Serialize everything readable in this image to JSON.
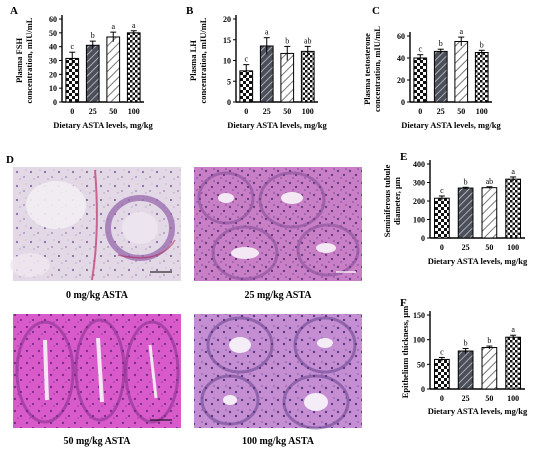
{
  "charts": [
    {
      "letter": "A",
      "ylabel_lines": [
        "Plasma FSH",
        "concentration, mIU/mL"
      ],
      "xlabel": "Dietary ASTA levels, mg/kg",
      "categories": [
        "0",
        "25",
        "50",
        "100"
      ],
      "ylim": [
        0,
        60
      ],
      "yticks": [
        "0",
        "10",
        "20",
        "30",
        "40",
        "50",
        "60"
      ],
      "values": [
        31.5,
        41,
        47,
        50
      ],
      "errors": [
        4.5,
        3,
        3.5,
        1.5
      ],
      "sig": [
        "c",
        "b",
        "a",
        "a"
      ]
    },
    {
      "letter": "B",
      "ylabel_lines": [
        "Plasma LH",
        "concentration, mIU/mL"
      ],
      "xlabel": "Dietary ASTA levels, mg/kg",
      "categories": [
        "0",
        "25",
        "50",
        "100"
      ],
      "ylim": [
        0,
        20
      ],
      "yticks": [
        "0",
        "5",
        "10",
        "15",
        "20"
      ],
      "values": [
        7.5,
        13.5,
        11.7,
        12.2
      ],
      "errors": [
        1.5,
        2,
        1.7,
        1.2
      ],
      "sig": [
        "c",
        "a",
        "b",
        "ab"
      ]
    },
    {
      "letter": "C",
      "ylabel_lines": [
        "Plasma testosterone",
        "concentration, mIU/mL"
      ],
      "xlabel": "Dietary ASTA levels, mg/kg",
      "categories": [
        "0",
        "25",
        "50",
        "100"
      ],
      "ylim": [
        0,
        60
      ],
      "yticks": [
        "0",
        "20",
        "40",
        "60"
      ],
      "values": [
        40,
        46,
        55,
        45
      ],
      "errors": [
        3,
        2,
        4,
        2
      ],
      "sig": [
        "c",
        "b",
        "a",
        "b"
      ]
    },
    {
      "letter": "E",
      "ylabel_lines": [
        "Seminiferous tubule",
        "diameter, µm"
      ],
      "xlabel": "Dietary ASTA levels, mg/kg",
      "categories": [
        "0",
        "25",
        "50",
        "100"
      ],
      "ylim": [
        0,
        400
      ],
      "yticks": [
        "0",
        "100",
        "200",
        "300",
        "400"
      ],
      "values": [
        215,
        270,
        272,
        318
      ],
      "errors": [
        12,
        4,
        5,
        12
      ],
      "sig": [
        "c",
        "b",
        "ab",
        "a"
      ]
    },
    {
      "letter": "F",
      "ylabel_lines": [
        "Epithelium thickness, µm"
      ],
      "xlabel": "Dietary ASTA levels, mg/kg",
      "categories": [
        "0",
        "25",
        "50",
        "100"
      ],
      "ylim": [
        0,
        150
      ],
      "yticks": [
        "0",
        "50",
        "100",
        "150"
      ],
      "values": [
        60,
        77,
        84,
        105
      ],
      "errors": [
        4,
        5,
        3,
        4
      ],
      "sig": [
        "c",
        "b",
        "b",
        "a"
      ]
    }
  ],
  "histology": {
    "letter": "D",
    "captions": [
      "0 mg/kg ASTA",
      "25 mg/kg ASTA",
      "50 mg/kg ASTA",
      "100 mg/kg ASTA"
    ]
  }
}
